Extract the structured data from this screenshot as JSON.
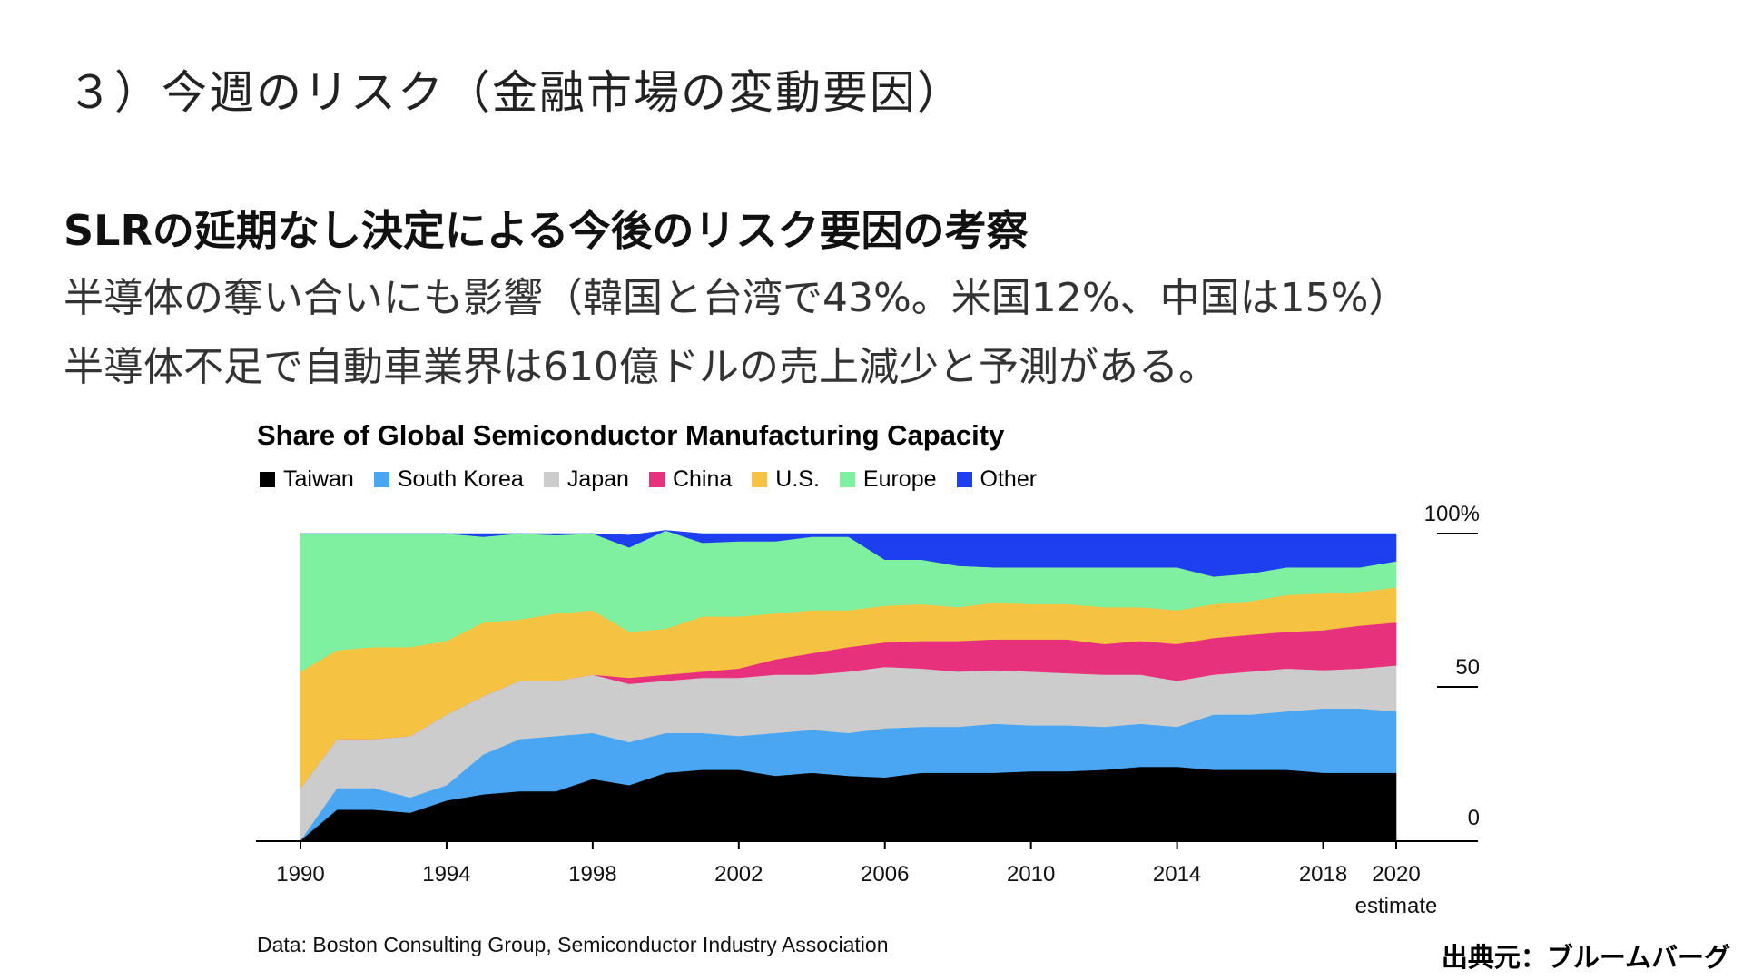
{
  "slide": {
    "section_title": "３）今週のリスク（金融市場の変動要因）",
    "headline": "SLRの延期なし決定による今後のリスク要因の考察",
    "body_line_1": "半導体の奪い合いにも影響（韓国と台湾で43%。米国12%、中国は15%）",
    "body_line_2": "半導体不足で自動車業界は610億ドルの売上減少と予測がある。",
    "credit": "出典元：ブルームバーグ"
  },
  "chart_data": {
    "type": "area",
    "stacked": true,
    "title": "Share of Global Semiconductor Manufacturing Capacity",
    "source": "Data: Boston Consulting Group, Semiconductor Industry Association",
    "x": [
      1990,
      1991,
      1992,
      1993,
      1994,
      1995,
      1996,
      1997,
      1998,
      1999,
      2000,
      2001,
      2002,
      2003,
      2004,
      2005,
      2006,
      2007,
      2008,
      2009,
      2010,
      2011,
      2012,
      2013,
      2014,
      2015,
      2016,
      2017,
      2018,
      2019,
      2020
    ],
    "xlim": [
      1990,
      2020
    ],
    "x_ticks": [
      {
        "value": 1990,
        "label": "1990"
      },
      {
        "value": 1994,
        "label": "1994"
      },
      {
        "value": 1998,
        "label": "1998"
      },
      {
        "value": 2002,
        "label": "2002"
      },
      {
        "value": 2006,
        "label": "2006"
      },
      {
        "value": 2010,
        "label": "2010"
      },
      {
        "value": 2014,
        "label": "2014"
      },
      {
        "value": 2018,
        "label": "2018"
      },
      {
        "value": 2020,
        "label": "2020"
      }
    ],
    "x_note": "estimate",
    "ylim": [
      0,
      100
    ],
    "y_ticks": [
      {
        "value": 100,
        "label": "100%"
      },
      {
        "value": 50,
        "label": "50"
      },
      {
        "value": 0,
        "label": "0"
      }
    ],
    "grid": false,
    "legend_position": "top-left",
    "series": [
      {
        "name": "Taiwan",
        "color": "#000000",
        "values": [
          0,
          10,
          10,
          9,
          13,
          15,
          16,
          16,
          20,
          18,
          22,
          23,
          23,
          21,
          22,
          21,
          20.5,
          22,
          22,
          22,
          22.5,
          22.5,
          23,
          24,
          24,
          23,
          23,
          23,
          22,
          22,
          22
        ]
      },
      {
        "name": "South Korea",
        "color": "#4aa6f2",
        "values": [
          0,
          7,
          7,
          5,
          5,
          13,
          17,
          18,
          15,
          14,
          13,
          12,
          11,
          14,
          14,
          14,
          16,
          15,
          15,
          16,
          15,
          15,
          14,
          14,
          13,
          18,
          18,
          19,
          21,
          21,
          20
        ]
      },
      {
        "name": "Japan",
        "color": "#cccccc",
        "values": [
          17,
          16,
          16,
          20,
          23,
          19,
          19,
          18,
          19,
          19,
          17,
          18,
          19,
          19,
          18,
          20,
          20,
          19,
          18,
          17.5,
          17.5,
          17,
          17,
          16,
          15,
          13,
          14,
          14,
          12.5,
          13,
          15
        ]
      },
      {
        "name": "China",
        "color": "#e8317c",
        "values": [
          0,
          0,
          0,
          0,
          0,
          0,
          0,
          0,
          0,
          2,
          2,
          2,
          3,
          5,
          7,
          8,
          8,
          9,
          10,
          10,
          10.5,
          11,
          10,
          11,
          12,
          12,
          12,
          12,
          13,
          14,
          14
        ]
      },
      {
        "name": "U.S.",
        "color": "#f5c242",
        "values": [
          38,
          29,
          30,
          29,
          24,
          24,
          20,
          22,
          21,
          15,
          15,
          18,
          17,
          15,
          14,
          12,
          12,
          12,
          11,
          12,
          11.5,
          11.5,
          12,
          11,
          11,
          11,
          11,
          12,
          12,
          11,
          11.5
        ]
      },
      {
        "name": "Europe",
        "color": "#7ff0a0",
        "values": [
          45,
          38,
          37,
          37,
          35,
          28,
          28,
          25.5,
          25,
          27.5,
          32,
          24,
          24.5,
          23.5,
          24,
          24,
          15,
          14.5,
          13.5,
          11.5,
          12,
          12,
          13,
          13,
          14,
          9,
          9,
          9,
          8.5,
          8,
          8.5
        ]
      },
      {
        "name": "Other",
        "color": "#1e3ff0",
        "values": [
          0,
          0,
          0,
          0,
          0,
          1,
          0,
          0.5,
          0,
          4,
          0,
          3,
          2.5,
          2.5,
          1,
          1,
          8.5,
          8.5,
          10.5,
          11,
          11,
          11,
          11,
          11,
          11,
          14,
          13,
          11,
          11,
          11,
          9
        ]
      }
    ]
  }
}
